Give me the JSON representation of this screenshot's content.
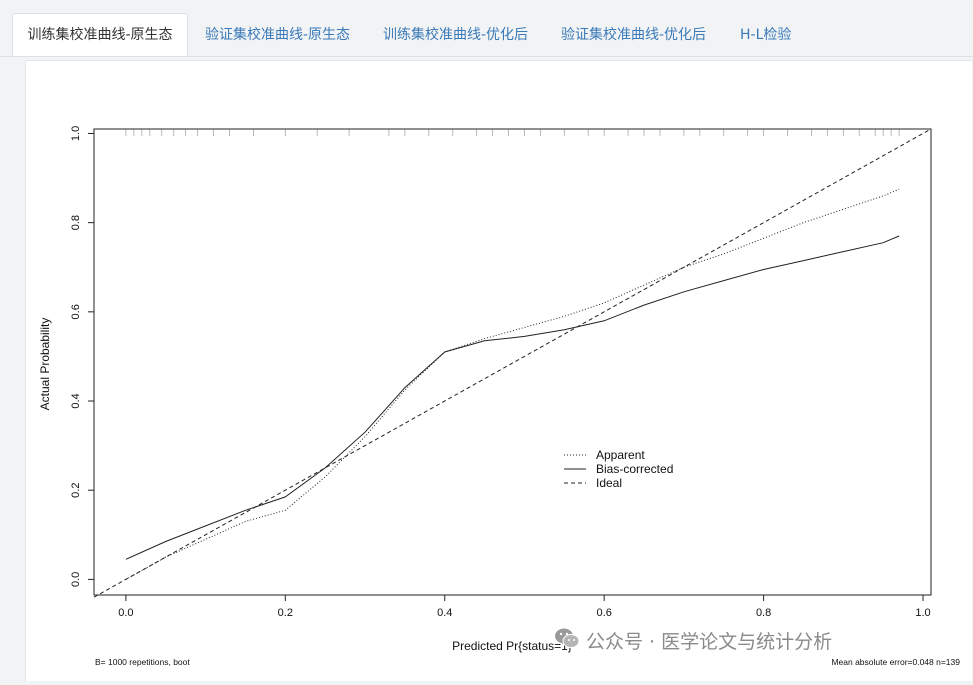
{
  "tabs": [
    {
      "label": "训练集校准曲线-原生态",
      "active": true
    },
    {
      "label": "验证集校准曲线-原生态",
      "active": false
    },
    {
      "label": "训练集校准曲线-优化后",
      "active": false
    },
    {
      "label": "验证集校准曲线-优化后",
      "active": false
    },
    {
      "label": "H-L检验",
      "active": false
    }
  ],
  "watermark": {
    "text": "公众号 · 医学论文与统计分析",
    "icon": "wechat-icon"
  },
  "chart_data": {
    "type": "line",
    "title": "",
    "xlabel": "Predicted Pr{status=1}",
    "ylabel": "Actual Probability",
    "xlim": [
      -0.04,
      1.01
    ],
    "ylim": [
      -0.035,
      1.01
    ],
    "xticks": [
      0.0,
      0.2,
      0.4,
      0.6,
      0.8,
      1.0
    ],
    "xtick_labels": [
      "0.0",
      "0.2",
      "0.4",
      "0.6",
      "0.8",
      "1.0"
    ],
    "yticks": [
      0.0,
      0.2,
      0.4,
      0.6,
      0.8,
      1.0
    ],
    "ytick_labels": [
      "0.0",
      "0.2",
      "0.4",
      "0.6",
      "0.8",
      "1.0"
    ],
    "grid": false,
    "legend_position": "center-right",
    "footnote_left": "B= 1000 repetitions, boot",
    "footnote_right": "Mean absolute error=0.048 n=139",
    "series": [
      {
        "name": "Apparent",
        "style": "dotted",
        "x": [
          0.0,
          0.05,
          0.1,
          0.15,
          0.2,
          0.25,
          0.3,
          0.35,
          0.4,
          0.45,
          0.5,
          0.55,
          0.6,
          0.65,
          0.7,
          0.75,
          0.8,
          0.85,
          0.9,
          0.95,
          0.97
        ],
        "y": [
          0.0,
          0.05,
          0.09,
          0.13,
          0.155,
          0.23,
          0.32,
          0.425,
          0.51,
          0.54,
          0.565,
          0.59,
          0.62,
          0.66,
          0.7,
          0.73,
          0.765,
          0.8,
          0.83,
          0.86,
          0.875
        ]
      },
      {
        "name": "Bias-corrected",
        "style": "solid",
        "x": [
          0.0,
          0.05,
          0.1,
          0.15,
          0.2,
          0.25,
          0.3,
          0.35,
          0.4,
          0.45,
          0.5,
          0.55,
          0.6,
          0.65,
          0.7,
          0.75,
          0.8,
          0.85,
          0.9,
          0.95,
          0.97
        ],
        "y": [
          0.045,
          0.085,
          0.12,
          0.155,
          0.185,
          0.25,
          0.33,
          0.43,
          0.51,
          0.535,
          0.545,
          0.56,
          0.58,
          0.615,
          0.645,
          0.67,
          0.695,
          0.715,
          0.735,
          0.755,
          0.77
        ]
      },
      {
        "name": "Ideal",
        "style": "dashed",
        "x": [
          -0.04,
          1.01
        ],
        "y": [
          -0.04,
          1.01
        ]
      }
    ],
    "rug_x": [
      0.0,
      0.01,
      0.02,
      0.03,
      0.045,
      0.06,
      0.075,
      0.09,
      0.11,
      0.13,
      0.16,
      0.2,
      0.24,
      0.28,
      0.33,
      0.35,
      0.38,
      0.41,
      0.44,
      0.46,
      0.48,
      0.5,
      0.52,
      0.55,
      0.58,
      0.6,
      0.63,
      0.65,
      0.67,
      0.7,
      0.72,
      0.75,
      0.78,
      0.8,
      0.83,
      0.86,
      0.88,
      0.9,
      0.92,
      0.94,
      0.95,
      0.96,
      0.97
    ]
  }
}
